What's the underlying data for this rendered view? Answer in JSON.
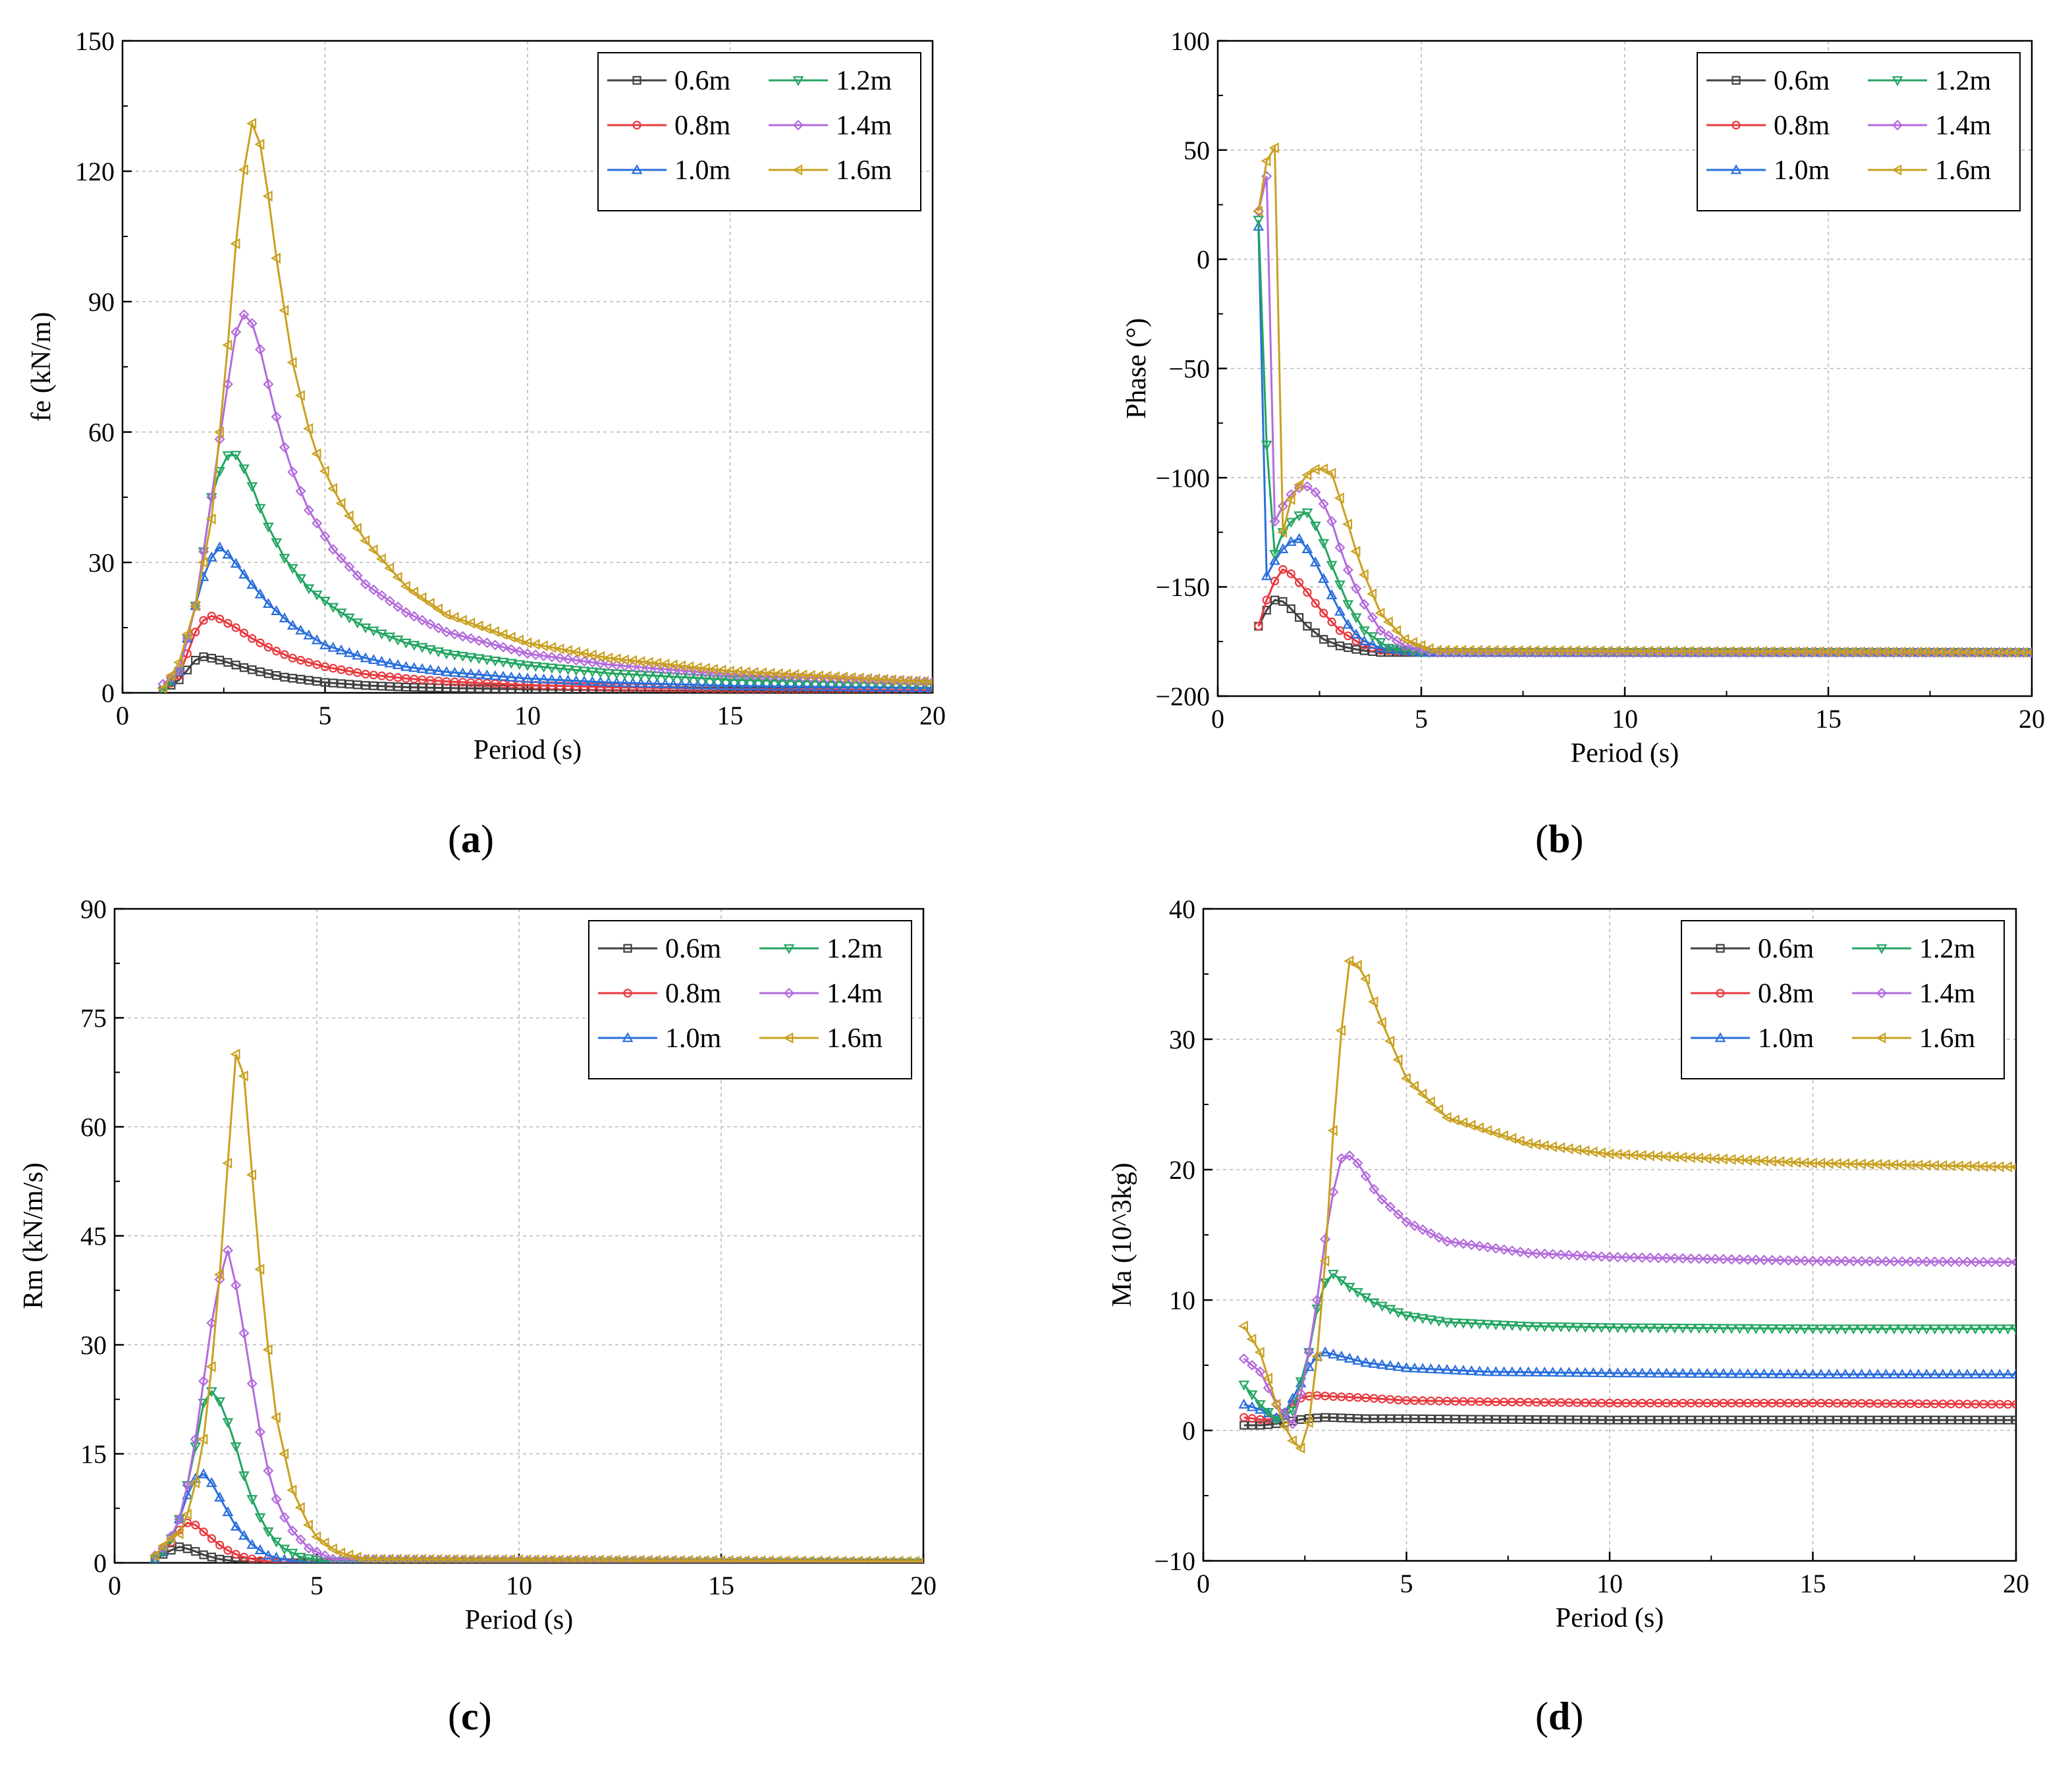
{
  "colors": {
    "0.6m": "#404040",
    "0.8m": "#e8393f",
    "1.0m": "#2a6fdb",
    "1.2m": "#23a561",
    "1.4m": "#b36bdb",
    "1.6m": "#c9a020"
  },
  "markers": {
    "0.6m": "square",
    "0.8m": "circle",
    "1.0m": "triangle-up",
    "1.2m": "triangle-down",
    "1.4m": "diamond",
    "1.6m": "triangle-left"
  },
  "chart_data": [
    {
      "id": "a",
      "caption": "a",
      "type": "line",
      "xlabel": "Period (s)",
      "ylabel": "fe (kN/m)",
      "xlim": [
        0,
        20
      ],
      "ylim": [
        0,
        150
      ],
      "xticks": [
        "0",
        "5",
        "10",
        "15",
        "20"
      ],
      "yticks": [
        "0",
        "30",
        "60",
        "90",
        "120",
        "150"
      ],
      "grid": true,
      "legend_position": "top-right",
      "series": [
        {
          "name": "0.6m",
          "x": [
            1,
            1.4,
            1.8,
            2.0,
            2.3,
            2.6,
            3,
            3.5,
            4,
            5,
            6,
            7,
            8,
            10,
            12,
            15,
            20
          ],
          "y": [
            0.5,
            3,
            7.5,
            8.3,
            7.8,
            7,
            5.8,
            4.6,
            3.6,
            2.4,
            1.7,
            1.3,
            1.1,
            0.8,
            0.6,
            0.4,
            0.3
          ]
        },
        {
          "name": "0.8m",
          "x": [
            1,
            1.4,
            1.8,
            2.1,
            2.4,
            2.8,
            3.2,
            3.7,
            4.2,
            5,
            6,
            7,
            8,
            10,
            12,
            15,
            20
          ],
          "y": [
            0.5,
            4,
            14,
            18,
            17,
            15,
            12.5,
            10,
            8,
            6,
            4.3,
            3.3,
            2.6,
            1.8,
            1.3,
            0.9,
            0.6
          ]
        },
        {
          "name": "1.0m",
          "x": [
            1,
            1.4,
            1.8,
            2.1,
            2.4,
            2.7,
            3.1,
            3.6,
            4.2,
            5,
            6,
            7,
            8,
            10,
            12,
            15,
            20
          ],
          "y": [
            0.3,
            5,
            20,
            30,
            33.5,
            31,
            26,
            20.5,
            15.5,
            11,
            8,
            6,
            4.8,
            3.3,
            2.4,
            1.6,
            1.1
          ]
        },
        {
          "name": "1.2m",
          "x": [
            1,
            1.4,
            1.8,
            2.2,
            2.5,
            2.75,
            3.1,
            3.5,
            4,
            4.6,
            5.3,
            6,
            7,
            8,
            10,
            12,
            15,
            20
          ],
          "y": [
            0.3,
            5,
            20,
            45,
            54,
            55.5,
            50,
            40,
            31,
            24,
            19,
            15,
            11.5,
            9,
            6.3,
            4.5,
            3,
            2
          ]
        },
        {
          "name": "1.4m",
          "x": [
            1,
            1.4,
            1.8,
            2.2,
            2.5,
            2.8,
            3.05,
            3.3,
            3.7,
            4.1,
            4.6,
            5.2,
            6,
            7,
            8,
            10,
            12,
            15,
            20
          ],
          "y": [
            2,
            5,
            20,
            45,
            65,
            83,
            88,
            83,
            67,
            53,
            42,
            33,
            25,
            18.5,
            14,
            9,
            6.5,
            4.2,
            2.5
          ]
        },
        {
          "name": "1.6m",
          "x": [
            1,
            1.4,
            1.8,
            2.2,
            2.6,
            2.9,
            3.2,
            3.45,
            3.8,
            4.2,
            4.7,
            5.3,
            6,
            7,
            8,
            10,
            12,
            15,
            20
          ],
          "y": [
            1,
            7,
            20,
            40,
            80,
            115,
            131,
            125,
            100,
            76,
            57,
            45,
            35,
            24.5,
            18,
            11.5,
            8,
            5,
            2.5
          ]
        }
      ]
    },
    {
      "id": "b",
      "caption": "b",
      "type": "line",
      "xlabel": "Period (s)",
      "ylabel": "Phase (°)",
      "xlim": [
        0,
        20
      ],
      "ylim": [
        -200,
        100
      ],
      "xticks": [
        "0",
        "5",
        "10",
        "15",
        "20"
      ],
      "yticks": [
        "−200",
        "−150",
        "−100",
        "−50",
        "0",
        "50",
        "100"
      ],
      "grid": true,
      "legend_position": "top-right",
      "series": [
        {
          "name": "0.6m",
          "x": [
            1,
            1.3,
            1.5,
            1.8,
            2.2,
            2.6,
            3,
            3.5,
            4,
            5,
            20
          ],
          "y": [
            -168,
            -157,
            -155,
            -160,
            -168,
            -174,
            -177,
            -179,
            -180,
            -180,
            -180
          ]
        },
        {
          "name": "0.8m",
          "x": [
            1,
            1.3,
            1.6,
            1.8,
            2.1,
            2.5,
            3,
            3.5,
            4,
            5,
            20
          ],
          "y": [
            -168,
            -150,
            -142,
            -144,
            -150,
            -160,
            -170,
            -176,
            -179,
            -180,
            -180
          ]
        },
        {
          "name": "1.0m",
          "x": [
            1,
            1.2,
            1.4,
            1.7,
            2.0,
            2.3,
            2.7,
            3.1,
            3.5,
            4,
            5,
            20
          ],
          "y": [
            15,
            -145,
            -138,
            -130,
            -128,
            -135,
            -150,
            -165,
            -174,
            -178,
            -180,
            -180
          ]
        },
        {
          "name": "1.2m",
          "x": [
            1,
            1.1,
            1.3,
            1.6,
            1.9,
            2.2,
            2.5,
            2.8,
            3.2,
            3.6,
            4.2,
            5,
            20
          ],
          "y": [
            18,
            -30,
            -140,
            -125,
            -118,
            -116,
            -125,
            -140,
            -158,
            -170,
            -178,
            -180,
            -180
          ]
        },
        {
          "name": "1.4m",
          "x": [
            1,
            1.2,
            1.4,
            1.6,
            1.9,
            2.2,
            2.5,
            2.8,
            3.1,
            3.5,
            4,
            4.6,
            5.3,
            20
          ],
          "y": [
            22,
            38,
            -120,
            -113,
            -105,
            -104,
            -108,
            -120,
            -138,
            -155,
            -170,
            -177,
            -180,
            -180
          ]
        },
        {
          "name": "1.6m",
          "x": [
            1,
            1.2,
            1.4,
            1.6,
            1.8,
            2.1,
            2.5,
            2.8,
            3.1,
            3.5,
            4,
            4.6,
            5.3,
            20
          ],
          "y": [
            22,
            45,
            51,
            -125,
            -110,
            -100,
            -95,
            -98,
            -115,
            -140,
            -162,
            -174,
            -179,
            -180
          ]
        }
      ]
    },
    {
      "id": "c",
      "caption": "c",
      "type": "line",
      "xlabel": "Period (s)",
      "ylabel": "Rm (kN/m/s)",
      "xlim": [
        0,
        20
      ],
      "ylim": [
        0,
        90
      ],
      "xticks": [
        "0",
        "5",
        "10",
        "15",
        "20"
      ],
      "yticks": [
        "0",
        "15",
        "30",
        "45",
        "60",
        "75",
        "90"
      ],
      "grid": true,
      "legend_position": "top-right",
      "series": [
        {
          "name": "0.6m",
          "x": [
            1,
            1.3,
            1.6,
            1.9,
            2.2,
            2.6,
            3,
            3.5,
            4,
            5,
            20
          ],
          "y": [
            0.5,
            1.5,
            2.2,
            1.8,
            1.1,
            0.5,
            0.2,
            0.1,
            0,
            0,
            0
          ]
        },
        {
          "name": "0.8m",
          "x": [
            1,
            1.3,
            1.6,
            1.8,
            2.0,
            2.3,
            2.7,
            3.1,
            3.6,
            4,
            5,
            20
          ],
          "y": [
            0.5,
            2,
            4.5,
            5.5,
            5.2,
            3.8,
            2,
            0.9,
            0.3,
            0.1,
            0,
            0
          ]
        },
        {
          "name": "1.0m",
          "x": [
            1,
            1.3,
            1.6,
            1.9,
            2.15,
            2.4,
            2.7,
            3.0,
            3.4,
            3.8,
            4.3,
            5,
            20
          ],
          "y": [
            0.5,
            2,
            6,
            11,
            12.5,
            11,
            8,
            5,
            2.5,
            1,
            0.3,
            0,
            0
          ]
        },
        {
          "name": "1.2m",
          "x": [
            1,
            1.3,
            1.6,
            1.9,
            2.2,
            2.45,
            2.7,
            3.0,
            3.3,
            3.7,
            4.1,
            4.6,
            5.2,
            20
          ],
          "y": [
            0.5,
            2,
            6,
            13,
            22,
            24,
            21,
            16,
            10,
            5,
            2.2,
            0.8,
            0.2,
            0
          ]
        },
        {
          "name": "1.4m",
          "x": [
            1,
            1.3,
            1.6,
            1.9,
            2.2,
            2.5,
            2.8,
            3.05,
            3.3,
            3.6,
            3.9,
            4.3,
            4.8,
            5.4,
            20
          ],
          "y": [
            1,
            2.5,
            6,
            13,
            25,
            37,
            43,
            37,
            28,
            18,
            10,
            5,
            2,
            0.5,
            0
          ]
        },
        {
          "name": "1.6m",
          "x": [
            1,
            1.3,
            1.6,
            1.9,
            2.2,
            2.5,
            2.8,
            3.0,
            3.2,
            3.45,
            3.7,
            4.0,
            4.4,
            4.9,
            5.5,
            6.2,
            20
          ],
          "y": [
            1,
            3,
            4,
            8,
            17,
            32,
            55,
            70,
            67,
            50,
            34,
            20,
            10,
            4,
            1.5,
            0.5,
            0.2
          ]
        }
      ]
    },
    {
      "id": "d",
      "caption": "d",
      "type": "line",
      "xlabel": "Period (s)",
      "ylabel": "Ma (10^3kg)",
      "xlim": [
        0,
        20
      ],
      "ylim": [
        -10,
        40
      ],
      "xticks": [
        "0",
        "5",
        "10",
        "15",
        "20"
      ],
      "yticks": [
        "−10",
        "0",
        "10",
        "20",
        "30",
        "40"
      ],
      "grid": true,
      "legend_position": "top-right",
      "series": [
        {
          "name": "0.6m",
          "x": [
            1,
            1.5,
            2,
            2.5,
            3,
            4,
            5,
            7,
            10,
            15,
            20
          ],
          "y": [
            0.4,
            0.4,
            0.6,
            0.9,
            1,
            0.9,
            0.9,
            0.85,
            0.8,
            0.8,
            0.8
          ]
        },
        {
          "name": "0.8m",
          "x": [
            1,
            1.5,
            1.9,
            2.3,
            2.7,
            3.2,
            4,
            5,
            7,
            10,
            15,
            20
          ],
          "y": [
            1,
            0.8,
            1,
            2.4,
            2.7,
            2.6,
            2.5,
            2.3,
            2.2,
            2.1,
            2.1,
            2.0
          ]
        },
        {
          "name": "1.0m",
          "x": [
            1,
            1.5,
            1.9,
            2.3,
            2.7,
            3.0,
            3.5,
            4,
            5,
            7,
            10,
            15,
            20
          ],
          "y": [
            2,
            1.5,
            0.8,
            3,
            5.5,
            6,
            5.6,
            5.2,
            4.8,
            4.5,
            4.4,
            4.3,
            4.3
          ]
        },
        {
          "name": "1.2m",
          "x": [
            1,
            1.4,
            1.8,
            2.2,
            2.6,
            2.9,
            3.2,
            3.6,
            4.2,
            5,
            6,
            8,
            10,
            15,
            20
          ],
          "y": [
            3.5,
            2,
            0.8,
            1.5,
            6,
            11,
            12,
            11,
            9.8,
            8.8,
            8.3,
            8,
            7.9,
            7.8,
            7.8
          ]
        },
        {
          "name": "1.4m",
          "x": [
            1,
            1.4,
            1.8,
            2.2,
            2.5,
            2.8,
            3.1,
            3.45,
            3.8,
            4.3,
            5,
            6,
            8,
            10,
            15,
            20
          ],
          "y": [
            5.5,
            4.5,
            2,
            0.5,
            4,
            10,
            17,
            21.5,
            20.5,
            18,
            16,
            14.5,
            13.6,
            13.3,
            13,
            12.9
          ]
        },
        {
          "name": "1.6m",
          "x": [
            1,
            1.4,
            1.8,
            2.1,
            2.45,
            2.7,
            3.0,
            3.3,
            3.6,
            3.9,
            4.3,
            5,
            6,
            8,
            10,
            15,
            20
          ],
          "y": [
            8,
            6,
            2,
            -0.5,
            -1.5,
            2,
            13,
            28,
            36,
            35.5,
            32,
            27,
            24,
            22,
            21.2,
            20.5,
            20.2
          ]
        }
      ]
    }
  ]
}
